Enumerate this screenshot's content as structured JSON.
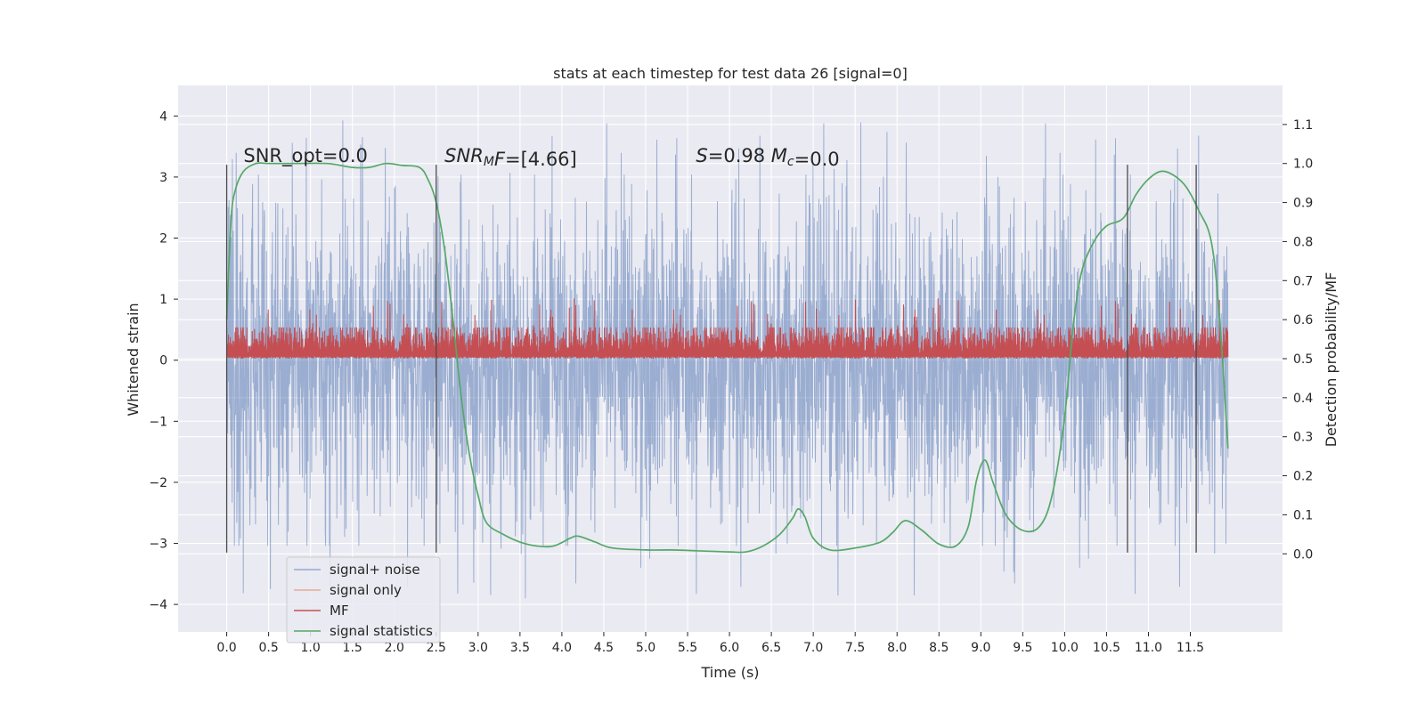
{
  "chart_data": {
    "type": "line",
    "title": "stats at each timestep for test data 26 [signal=0]",
    "xlabel": "Time (s)",
    "ylabel_left": "Whitened strain",
    "ylabel_right": "Detection probability/MF",
    "xlim": [
      -0.58,
      12.6
    ],
    "ylim_left": [
      -4.45,
      4.5
    ],
    "ylim_right": [
      -0.2,
      1.2
    ],
    "x_ticks": [
      0.0,
      0.5,
      1.0,
      1.5,
      2.0,
      2.5,
      3.0,
      3.5,
      4.0,
      4.5,
      5.0,
      5.5,
      6.0,
      6.5,
      7.0,
      7.5,
      8.0,
      8.5,
      9.0,
      9.5,
      10.0,
      10.5,
      11.0,
      11.5
    ],
    "x_tick_labels": [
      "0.0",
      "0.5",
      "1.0",
      "1.5",
      "2.0",
      "2.5",
      "3.0",
      "3.5",
      "4.0",
      "4.5",
      "5.0",
      "5.5",
      "6.0",
      "6.5",
      "7.0",
      "7.5",
      "8.0",
      "8.5",
      "9.0",
      "9.5",
      "10.0",
      "10.5",
      "11.0",
      "11.5"
    ],
    "y_left_ticks": [
      4,
      3,
      2,
      1,
      0,
      -1,
      -2,
      -3,
      -4
    ],
    "y_left_tick_labels": [
      "4",
      "3",
      "2",
      "1",
      "0",
      "−1",
      "−2",
      "−3",
      "−4"
    ],
    "y_right_ticks": [
      1.1,
      1.0,
      0.9,
      0.8,
      0.7,
      0.6,
      0.5,
      0.4,
      0.3,
      0.2,
      0.1,
      0.0
    ],
    "y_right_tick_labels": [
      "1.1",
      "1.0",
      "0.9",
      "0.8",
      "0.7",
      "0.6",
      "0.5",
      "0.4",
      "0.3",
      "0.2",
      "0.1",
      "0.0"
    ],
    "grid": true,
    "legend_position": "lower-left",
    "series": [
      {
        "name": "signal+ noise",
        "axis": "left",
        "color": "#4c72b0",
        "style": "noise",
        "x_range": [
          0.0,
          11.95
        ],
        "band": [
          -1.9,
          1.9
        ],
        "extremes": [
          -3.9,
          4.1
        ]
      },
      {
        "name": "signal only",
        "axis": "left",
        "color": "#dd8452",
        "values": []
      },
      {
        "name": "MF",
        "axis": "right",
        "color": "#c44e52",
        "style": "noise",
        "x_range": [
          0.0,
          11.95
        ],
        "band": [
          0.5,
          0.58
        ],
        "extremes": [
          0.5,
          0.66
        ]
      },
      {
        "name": "signal statistics",
        "axis": "right",
        "color": "#55a868",
        "x": [
          0.0,
          0.05,
          0.1,
          0.2,
          0.35,
          0.5,
          0.8,
          1.2,
          1.5,
          1.7,
          1.9,
          2.1,
          2.3,
          2.4,
          2.5,
          2.6,
          2.7,
          2.8,
          2.9,
          3.0,
          3.1,
          3.3,
          3.5,
          3.7,
          3.9,
          4.1,
          4.2,
          4.4,
          4.6,
          5.0,
          5.3,
          5.6,
          6.0,
          6.2,
          6.4,
          6.6,
          6.75,
          6.82,
          6.9,
          7.0,
          7.2,
          7.5,
          7.8,
          7.95,
          8.1,
          8.3,
          8.5,
          8.7,
          8.85,
          8.95,
          9.05,
          9.15,
          9.3,
          9.5,
          9.7,
          9.85,
          10.0,
          10.1,
          10.2,
          10.35,
          10.5,
          10.7,
          10.85,
          11.0,
          11.15,
          11.3,
          11.45,
          11.6,
          11.75,
          11.85,
          11.95
        ],
        "values": [
          0.6,
          0.85,
          0.93,
          0.98,
          1.0,
          1.0,
          1.0,
          1.0,
          0.99,
          0.99,
          1.0,
          0.995,
          0.99,
          0.96,
          0.9,
          0.78,
          0.6,
          0.4,
          0.25,
          0.15,
          0.08,
          0.05,
          0.03,
          0.02,
          0.02,
          0.04,
          0.045,
          0.03,
          0.015,
          0.01,
          0.01,
          0.008,
          0.005,
          0.005,
          0.02,
          0.05,
          0.09,
          0.115,
          0.095,
          0.04,
          0.01,
          0.015,
          0.03,
          0.055,
          0.085,
          0.06,
          0.025,
          0.02,
          0.07,
          0.19,
          0.24,
          0.18,
          0.1,
          0.06,
          0.07,
          0.15,
          0.35,
          0.58,
          0.72,
          0.8,
          0.84,
          0.86,
          0.92,
          0.96,
          0.98,
          0.97,
          0.94,
          0.88,
          0.8,
          0.6,
          0.27
        ]
      }
    ],
    "vlines": [
      {
        "x": 0.0,
        "from": -3.15,
        "to": 3.2
      },
      {
        "x": 2.5,
        "from": -3.15,
        "to": 3.2
      },
      {
        "x": 10.75,
        "from": -3.15,
        "to": 3.2
      },
      {
        "x": 11.57,
        "from": -3.15,
        "to": 3.2
      }
    ],
    "annotations": [
      {
        "x": 0.2,
        "y": 3.25,
        "parts": [
          {
            "t": "SNR_opt=0.0"
          }
        ]
      },
      {
        "x": 2.6,
        "y": 3.25,
        "parts": [
          {
            "t": "SNR",
            "i": true
          },
          {
            "t": "M",
            "i": true,
            "sub": true
          },
          {
            "t": "F",
            "i": true
          },
          {
            "t": "=[4.66]"
          }
        ]
      },
      {
        "x": 5.6,
        "y": 3.25,
        "parts": [
          {
            "t": "S",
            "i": true
          },
          {
            "t": "=0.98   "
          },
          {
            "t": "M",
            "i": true
          },
          {
            "t": "c",
            "i": true,
            "sub": true
          },
          {
            "t": "=0.0"
          }
        ]
      }
    ]
  }
}
